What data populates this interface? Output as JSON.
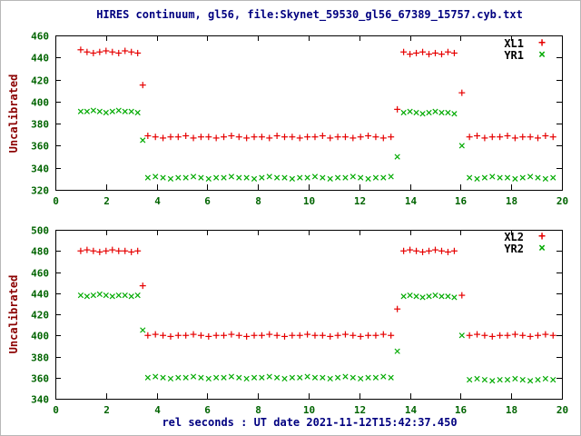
{
  "figure": {
    "title": "HIRES continuum, gl56, file:Skynet_59530_gl56_67389_15757.cyb.txt",
    "xlabel": "rel seconds : UT date 2021-11-12T15:42:37.450",
    "colors": {
      "background": "#ffffff",
      "axis": "#000000",
      "title": "#000080",
      "ylabel": "#8b0000",
      "xlabel": "#000080",
      "ticks": "#006400",
      "red_points": "#e60000",
      "green_points": "#00aa00"
    }
  },
  "chart_data": [
    {
      "type": "scatter",
      "ylabel": "Uncalibrated",
      "ylim": [
        320,
        460
      ],
      "ytick_step": 20,
      "xlim": [
        0,
        20
      ],
      "xtick_step": 2,
      "grid": false,
      "legend_position": "top-right",
      "x": [
        1.0,
        1.25,
        1.5,
        1.75,
        2.0,
        2.25,
        2.5,
        2.75,
        3.0,
        3.25,
        3.45,
        3.65,
        3.95,
        4.25,
        4.55,
        4.85,
        5.15,
        5.45,
        5.75,
        6.05,
        6.35,
        6.65,
        6.95,
        7.25,
        7.55,
        7.85,
        8.15,
        8.45,
        8.75,
        9.05,
        9.35,
        9.65,
        9.95,
        10.25,
        10.55,
        10.85,
        11.15,
        11.45,
        11.75,
        12.05,
        12.35,
        12.65,
        12.95,
        13.25,
        13.5,
        13.75,
        14.0,
        14.25,
        14.5,
        14.75,
        15.0,
        15.25,
        15.5,
        15.75,
        16.05,
        16.35,
        16.65,
        16.95,
        17.25,
        17.55,
        17.85,
        18.15,
        18.45,
        18.75,
        19.05,
        19.35,
        19.65
      ],
      "series": [
        {
          "name": "XL1",
          "marker": "plus",
          "glyph": "+",
          "color": "#e60000",
          "values": [
            447,
            445,
            444,
            445,
            446,
            445,
            444,
            446,
            445,
            444,
            415,
            369,
            368,
            367,
            368,
            368,
            369,
            367,
            368,
            368,
            367,
            368,
            369,
            368,
            367,
            368,
            368,
            367,
            369,
            368,
            368,
            367,
            368,
            368,
            369,
            367,
            368,
            368,
            367,
            368,
            369,
            368,
            367,
            368,
            393,
            445,
            443,
            444,
            445,
            443,
            444,
            443,
            445,
            444,
            408,
            368,
            369,
            367,
            368,
            368,
            369,
            367,
            368,
            368,
            367,
            369,
            368
          ]
        },
        {
          "name": "YR1",
          "marker": "cross",
          "glyph": "×",
          "color": "#00aa00",
          "values": [
            391,
            391,
            392,
            391,
            390,
            391,
            392,
            391,
            391,
            390,
            365,
            331,
            332,
            331,
            330,
            331,
            331,
            332,
            331,
            330,
            331,
            331,
            332,
            331,
            331,
            330,
            331,
            332,
            331,
            331,
            330,
            331,
            331,
            332,
            331,
            330,
            331,
            331,
            332,
            331,
            330,
            331,
            331,
            332,
            350,
            390,
            391,
            390,
            389,
            390,
            391,
            390,
            390,
            389,
            360,
            331,
            330,
            331,
            332,
            331,
            331,
            330,
            331,
            332,
            331,
            330,
            331
          ]
        }
      ]
    },
    {
      "type": "scatter",
      "ylabel": "Uncalibrated",
      "ylim": [
        340,
        500
      ],
      "ytick_step": 20,
      "xlim": [
        0,
        20
      ],
      "xtick_step": 2,
      "grid": false,
      "legend_position": "top-right",
      "x": [
        1.0,
        1.25,
        1.5,
        1.75,
        2.0,
        2.25,
        2.5,
        2.75,
        3.0,
        3.25,
        3.45,
        3.65,
        3.95,
        4.25,
        4.55,
        4.85,
        5.15,
        5.45,
        5.75,
        6.05,
        6.35,
        6.65,
        6.95,
        7.25,
        7.55,
        7.85,
        8.15,
        8.45,
        8.75,
        9.05,
        9.35,
        9.65,
        9.95,
        10.25,
        10.55,
        10.85,
        11.15,
        11.45,
        11.75,
        12.05,
        12.35,
        12.65,
        12.95,
        13.25,
        13.5,
        13.75,
        14.0,
        14.25,
        14.5,
        14.75,
        15.0,
        15.25,
        15.5,
        15.75,
        16.05,
        16.35,
        16.65,
        16.95,
        17.25,
        17.55,
        17.85,
        18.15,
        18.45,
        18.75,
        19.05,
        19.35,
        19.65
      ],
      "series": [
        {
          "name": "XL2",
          "marker": "plus",
          "glyph": "+",
          "color": "#e60000",
          "values": [
            480,
            481,
            480,
            479,
            480,
            481,
            480,
            480,
            479,
            480,
            447,
            400,
            401,
            400,
            399,
            400,
            400,
            401,
            400,
            399,
            400,
            400,
            401,
            400,
            399,
            400,
            400,
            401,
            400,
            399,
            400,
            400,
            401,
            400,
            400,
            399,
            400,
            401,
            400,
            399,
            400,
            400,
            401,
            400,
            425,
            480,
            481,
            480,
            479,
            480,
            481,
            480,
            479,
            480,
            438,
            400,
            401,
            400,
            399,
            400,
            400,
            401,
            400,
            399,
            400,
            401,
            400
          ]
        },
        {
          "name": "YR2",
          "marker": "cross",
          "glyph": "×",
          "color": "#00aa00",
          "values": [
            438,
            437,
            438,
            439,
            438,
            437,
            438,
            438,
            437,
            438,
            405,
            360,
            361,
            360,
            359,
            360,
            360,
            361,
            360,
            359,
            360,
            360,
            361,
            360,
            359,
            360,
            360,
            361,
            360,
            359,
            360,
            360,
            361,
            360,
            360,
            359,
            360,
            361,
            360,
            359,
            360,
            360,
            361,
            360,
            385,
            437,
            438,
            437,
            436,
            437,
            438,
            437,
            437,
            436,
            400,
            358,
            359,
            358,
            357,
            358,
            358,
            359,
            358,
            357,
            358,
            359,
            358
          ]
        }
      ]
    }
  ]
}
